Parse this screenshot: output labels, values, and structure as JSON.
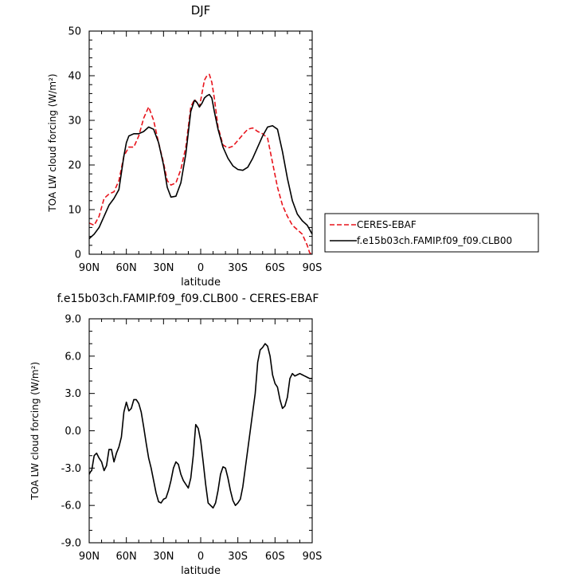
{
  "chart_data": [
    {
      "type": "line",
      "title": "DJF",
      "xlabel": "latitude",
      "ylabel": "TOA LW cloud forcing (W/m²)",
      "xlim": [
        -90,
        90
      ],
      "ylim": [
        0,
        50
      ],
      "xticks": [
        -90,
        -60,
        -30,
        0,
        30,
        60,
        90
      ],
      "xtick_labels": [
        "90N",
        "60N",
        "30N",
        "0",
        "30S",
        "60S",
        "90S"
      ],
      "yticks": [
        0,
        10,
        20,
        30,
        40,
        50
      ],
      "ytick_labels": [
        "0",
        "10",
        "20",
        "30",
        "40",
        "50"
      ],
      "legend": {
        "position": "right",
        "entries": [
          "CERES-EBAF",
          "f.e15b03ch.FAMIP.f09_f09.CLB00"
        ]
      },
      "series": [
        {
          "name": "CERES-EBAF",
          "color": "#e8141c",
          "dash": "dashed",
          "x": [
            -90,
            -86,
            -82,
            -78,
            -74,
            -70,
            -66,
            -62,
            -58,
            -54,
            -50,
            -46,
            -42,
            -38,
            -34,
            -30,
            -27,
            -24,
            -20,
            -16,
            -12,
            -8,
            -5,
            -3,
            -1,
            1,
            3,
            5,
            7,
            9,
            11,
            14,
            18,
            22,
            26,
            30,
            34,
            38,
            42,
            46,
            50,
            54,
            58,
            62,
            66,
            70,
            74,
            78,
            82,
            86,
            88,
            90
          ],
          "y": [
            7,
            6.5,
            8.5,
            12.5,
            13.5,
            14,
            16.5,
            22,
            24,
            24,
            26.5,
            30.5,
            33,
            30,
            25,
            20.5,
            16.5,
            15.5,
            16,
            19,
            24,
            33,
            34.7,
            34,
            33,
            36,
            39,
            40,
            40.3,
            38.5,
            35,
            28.5,
            24.5,
            23.8,
            24.2,
            25.5,
            26.8,
            28,
            28.3,
            27.5,
            27,
            26,
            20.5,
            15,
            11,
            8.5,
            6.5,
            5.5,
            4.5,
            2,
            0.3,
            0
          ]
        },
        {
          "name": "f.e15b03ch.FAMIP.f09_f09.CLB00",
          "color": "#000000",
          "dash": "solid",
          "x": [
            -90,
            -86,
            -82,
            -78,
            -74,
            -70,
            -66,
            -62,
            -60,
            -58,
            -54,
            -50,
            -46,
            -42,
            -38,
            -34,
            -30,
            -27,
            -24,
            -20,
            -16,
            -12,
            -8,
            -5,
            -3,
            -1,
            1,
            3,
            5,
            7,
            9,
            11,
            14,
            18,
            22,
            26,
            30,
            34,
            38,
            42,
            46,
            50,
            54,
            58,
            62,
            66,
            70,
            74,
            78,
            82,
            86,
            90
          ],
          "y": [
            3.5,
            4.5,
            6,
            8.5,
            11,
            12.5,
            14.5,
            22,
            25,
            26.5,
            27,
            27,
            27.5,
            28.5,
            28,
            25,
            20,
            15,
            12.8,
            13,
            16,
            22.5,
            32,
            34.5,
            34,
            33,
            33.8,
            35,
            35.5,
            35.8,
            35,
            32,
            28,
            24,
            21.5,
            19.8,
            19,
            18.8,
            19.5,
            21.5,
            24,
            26.5,
            28.5,
            28.8,
            28,
            23,
            17,
            12,
            9,
            7.5,
            6.5,
            4.5
          ]
        }
      ]
    },
    {
      "type": "line",
      "title": "f.e15b03ch.FAMIP.f09_f09.CLB00 - CERES-EBAF",
      "xlabel": "latitude",
      "ylabel": "TOA LW cloud forcing (W/m²)",
      "xlim": [
        -90,
        90
      ],
      "ylim": [
        -9,
        9
      ],
      "xticks": [
        -90,
        -60,
        -30,
        0,
        30,
        60,
        90
      ],
      "xtick_labels": [
        "90N",
        "60N",
        "30N",
        "0",
        "30S",
        "60S",
        "90S"
      ],
      "yticks": [
        -9,
        -6,
        -3,
        0,
        3,
        6,
        9
      ],
      "ytick_labels": [
        "-9.0",
        "-6.0",
        "-3.0",
        "0.0",
        "3.0",
        "6.0",
        "9.0"
      ],
      "series": [
        {
          "color": "#000000",
          "dash": "solid",
          "x": [
            -90,
            -89,
            -88,
            -86,
            -84,
            -82,
            -80,
            -78,
            -76,
            -74,
            -72,
            -70,
            -68,
            -66,
            -64,
            -62,
            -60,
            -58,
            -56,
            -54,
            -52,
            -50,
            -48,
            -46,
            -44,
            -42,
            -40,
            -38,
            -36,
            -34,
            -32,
            -30,
            -28,
            -26,
            -24,
            -22,
            -20,
            -18,
            -16,
            -14,
            -12,
            -10,
            -8,
            -6,
            -4,
            -2,
            0,
            2,
            4,
            6,
            8,
            10,
            12,
            14,
            16,
            18,
            20,
            22,
            24,
            26,
            28,
            30,
            32,
            34,
            36,
            38,
            40,
            42,
            44,
            46,
            48,
            50,
            52,
            54,
            56,
            58,
            60,
            62,
            64,
            66,
            68,
            70,
            72,
            74,
            76,
            78,
            80,
            82,
            84,
            86,
            88,
            90
          ],
          "y": [
            -3.5,
            -3.3,
            -3.2,
            -2,
            -1.8,
            -2.2,
            -2.5,
            -3.2,
            -2.8,
            -1.5,
            -1.5,
            -2.5,
            -1.8,
            -1.3,
            -0.5,
            1.5,
            2.3,
            1.6,
            1.8,
            2.5,
            2.5,
            2.2,
            1.5,
            0.3,
            -1,
            -2.2,
            -3,
            -4,
            -5,
            -5.7,
            -5.8,
            -5.5,
            -5.4,
            -4.8,
            -4,
            -3,
            -2.5,
            -2.7,
            -3.5,
            -4,
            -4.3,
            -4.6,
            -3.8,
            -2,
            0.5,
            0.2,
            -0.8,
            -2.5,
            -4.3,
            -5.8,
            -6,
            -6.2,
            -5.8,
            -4.8,
            -3.5,
            -2.9,
            -3,
            -3.8,
            -4.8,
            -5.6,
            -6,
            -5.8,
            -5.5,
            -4.5,
            -3,
            -1.5,
            0,
            1.5,
            3,
            5.5,
            6.5,
            6.7,
            7,
            6.8,
            6,
            4.5,
            3.8,
            3.5,
            2.5,
            1.8,
            2,
            2.7,
            4.2,
            4.6,
            4.4,
            4.5,
            4.6,
            4.5,
            4.4,
            4.3,
            4.2,
            4.2
          ]
        }
      ]
    }
  ]
}
